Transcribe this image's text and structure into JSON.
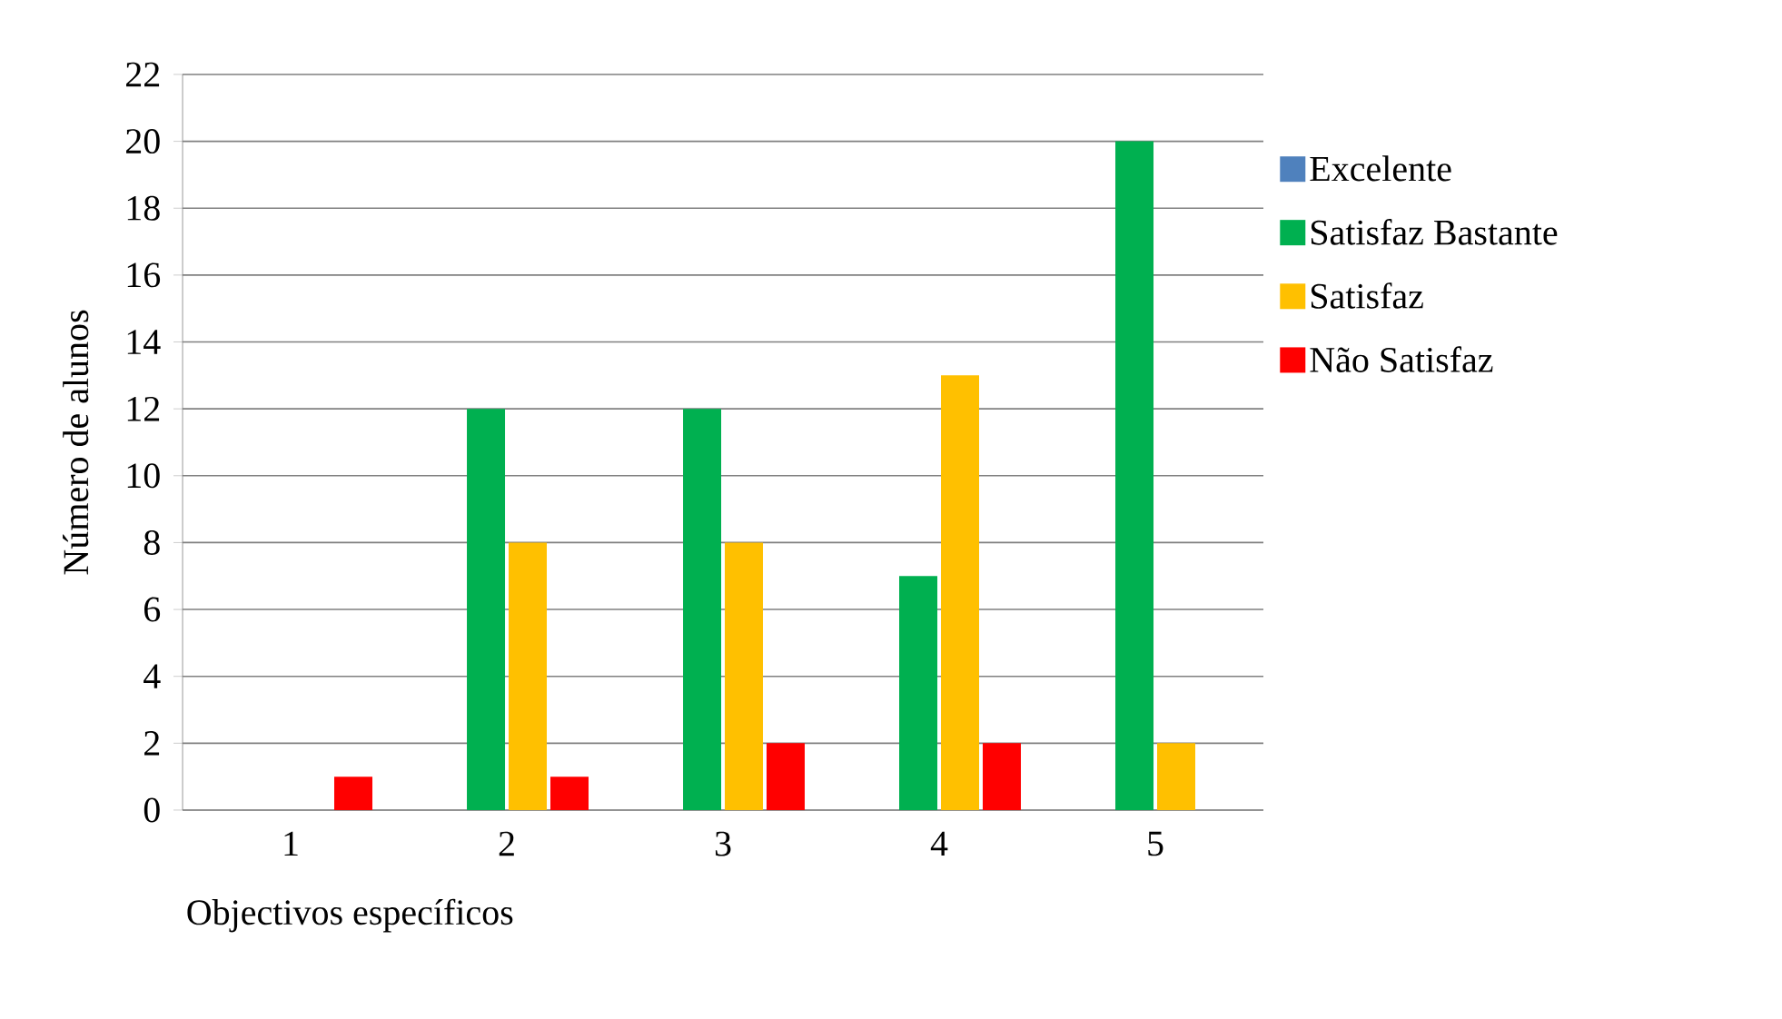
{
  "chart_data": {
    "type": "bar",
    "xlabel": "Objectivos  específicos",
    "ylabel": "Número de alunos",
    "categories": [
      "1",
      "2",
      "3",
      "4",
      "5"
    ],
    "series": [
      {
        "name": "Excelente",
        "color": "#4f81bd",
        "values": [
          0,
          0,
          0,
          0,
          0
        ]
      },
      {
        "name": "Satisfaz Bastante",
        "color": "#00b050",
        "values": [
          0,
          12,
          12,
          7,
          20
        ]
      },
      {
        "name": "Satisfaz",
        "color": "#ffc000",
        "values": [
          0,
          8,
          8,
          13,
          2
        ]
      },
      {
        "name": "Não Satisfaz",
        "color": "#ff0000",
        "values": [
          1,
          1,
          2,
          2,
          0
        ]
      }
    ],
    "ylim": [
      0,
      22
    ],
    "yticks": [
      0,
      2,
      4,
      6,
      8,
      10,
      12,
      14,
      16,
      18,
      20,
      22
    ],
    "grid": "y",
    "legend": "right"
  }
}
